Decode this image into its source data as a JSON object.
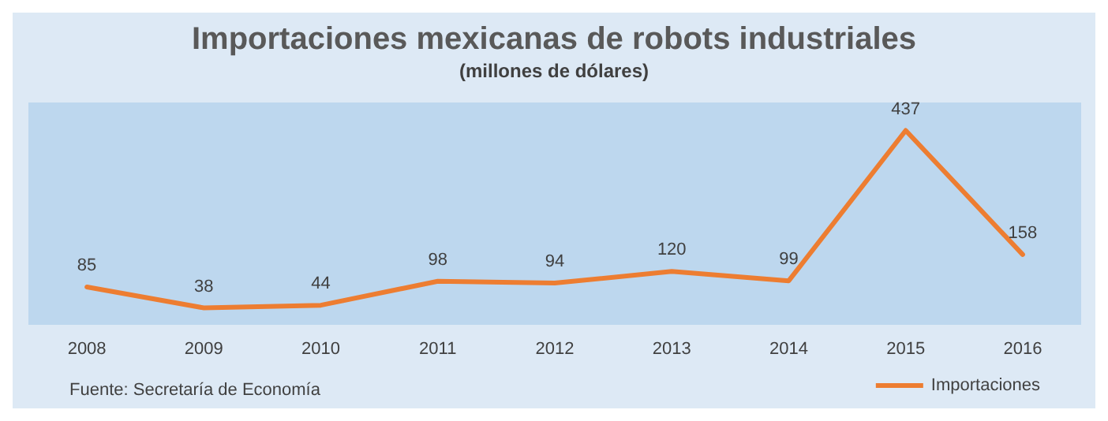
{
  "chart_data": {
    "type": "line",
    "title": "Importaciones mexicanas de robots industriales",
    "subtitle": "(millones de dólares)",
    "categories": [
      "2008",
      "2009",
      "2010",
      "2011",
      "2012",
      "2013",
      "2014",
      "2015",
      "2016"
    ],
    "series": [
      {
        "name": "Importaciones",
        "color": "#ed7d31",
        "values": [
          85,
          38,
          44,
          98,
          94,
          120,
          99,
          437,
          158
        ]
      }
    ],
    "data_labels": true,
    "marker": "none",
    "line_style": "solid",
    "grid": false,
    "legend": "bottom right",
    "annotations": [
      "Fuente: Secretaría de Economía"
    ]
  }
}
